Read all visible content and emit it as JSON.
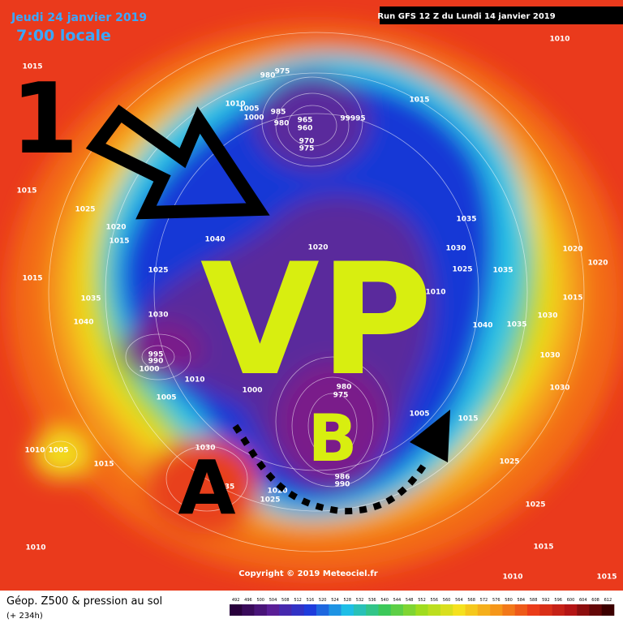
{
  "header": {
    "date": "Jeudi 24 janvier 2019",
    "time": "7:00 locale",
    "run": "Run GFS 12 Z du Lundi 14 janvier 2019"
  },
  "annotations": {
    "number": "1",
    "vortex": "VP",
    "low": "B",
    "high": "A"
  },
  "isobar_labels": [
    "1010",
    "1015",
    "975",
    "980",
    "1015",
    "1010",
    "1005",
    "1000",
    "985",
    "965",
    "980",
    "960",
    "99995",
    "970",
    "975",
    "1015",
    "1025",
    "1020",
    "1015",
    "1040",
    "1035",
    "1030",
    "1020",
    "1020",
    "1025",
    "1035",
    "1025",
    "1015",
    "1020",
    "1010",
    "1015",
    "1035",
    "1030",
    "1040",
    "1030",
    "1040",
    "1035",
    "1030",
    "995",
    "990",
    "1000",
    "1010",
    "1030",
    "1000",
    "980",
    "975",
    "1005",
    "1005",
    "1015",
    "1010",
    "1005",
    "1030",
    "1015",
    "1025",
    "1020",
    "1025",
    "1025",
    "986",
    "990",
    "1010",
    "1015",
    "1010",
    "1015",
    "35"
  ],
  "footer": {
    "title": "Géop. Z500 & pression au sol",
    "forecast": "(+ 234h)",
    "copyright": "Copyright © 2019 Meteociel.fr"
  },
  "color_scale": {
    "ticks": [
      492,
      496,
      500,
      504,
      508,
      512,
      516,
      520,
      524,
      528,
      532,
      536,
      540,
      544,
      548,
      552,
      556,
      560,
      564,
      568,
      572,
      576,
      580,
      584,
      588,
      592,
      596,
      600,
      604,
      608,
      612
    ]
  }
}
